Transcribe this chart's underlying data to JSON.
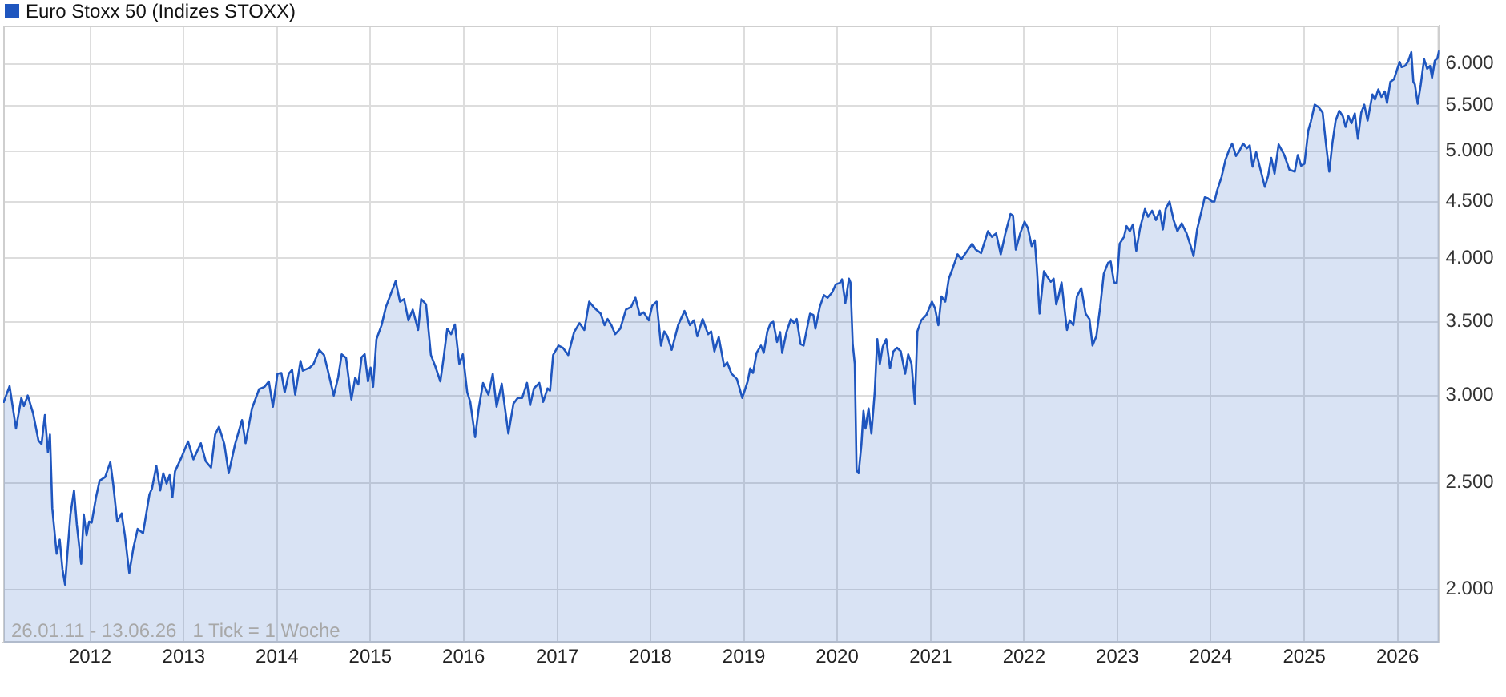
{
  "chart_data": {
    "type": "area",
    "legend": "top left",
    "grid": true,
    "log": true,
    "marker": "none",
    "annotations": [
      "26.01.11 - 13.06.26",
      "1 Tick = 1 Woche"
    ],
    "xlim": [
      "2011-01-26",
      "2026-06-13"
    ],
    "xticks": [
      "2012",
      "2013",
      "2014",
      "2015",
      "2016",
      "2017",
      "2018",
      "2019",
      "2020",
      "2021",
      "2022",
      "2023",
      "2024",
      "2025",
      "2026"
    ],
    "ylim": [
      1790,
      6500
    ],
    "yticks": [
      {
        "value": 2000,
        "label": "2.000"
      },
      {
        "value": 2500,
        "label": "2.500"
      },
      {
        "value": 3000,
        "label": "3.000"
      },
      {
        "value": 3500,
        "label": "3.500"
      },
      {
        "value": 4000,
        "label": "4.000"
      },
      {
        "value": 4500,
        "label": "4.500"
      },
      {
        "value": 5000,
        "label": "5.000"
      },
      {
        "value": 5500,
        "label": "5.500"
      },
      {
        "value": 6000,
        "label": "6.000"
      }
    ],
    "x": [
      "2011-01-28",
      "2011-02-20",
      "2011-03-17",
      "2011-04-07",
      "2011-04-17",
      "2011-05-02",
      "2011-05-23",
      "2011-06-13",
      "2011-06-25",
      "2011-07-08",
      "2011-07-20",
      "2011-07-28",
      "2011-08-06",
      "2011-08-23",
      "2011-09-04",
      "2011-09-15",
      "2011-09-25",
      "2011-10-03",
      "2011-10-16",
      "2011-10-30",
      "2011-11-10",
      "2011-11-27",
      "2011-12-07",
      "2011-12-18",
      "2011-12-28",
      "2012-01-07",
      "2012-01-24",
      "2012-02-07",
      "2012-02-29",
      "2012-03-20",
      "2012-03-31",
      "2012-04-16",
      "2012-05-03",
      "2012-05-16",
      "2012-06-02",
      "2012-06-18",
      "2012-07-05",
      "2012-07-26",
      "2012-08-20",
      "2012-08-30",
      "2012-09-16",
      "2012-10-01",
      "2012-10-13",
      "2012-10-26",
      "2012-11-07",
      "2012-11-18",
      "2012-11-28",
      "2012-12-23",
      "2013-01-18",
      "2013-02-08",
      "2013-03-09",
      "2013-03-28",
      "2013-04-18",
      "2013-05-04",
      "2013-05-19",
      "2013-06-09",
      "2013-06-26",
      "2013-07-21",
      "2013-08-17",
      "2013-08-31",
      "2013-09-25",
      "2013-10-23",
      "2013-11-13",
      "2013-11-30",
      "2013-12-16",
      "2014-01-03",
      "2014-01-18",
      "2014-01-31",
      "2014-02-16",
      "2014-03-01",
      "2014-03-13",
      "2014-04-03",
      "2014-04-12",
      "2014-05-09",
      "2014-05-24",
      "2014-06-15",
      "2014-07-04",
      "2014-07-17",
      "2014-08-11",
      "2014-08-28",
      "2014-09-11",
      "2014-09-28",
      "2014-10-19",
      "2014-11-03",
      "2014-11-15",
      "2014-11-28",
      "2014-12-10",
      "2014-12-23",
      "2015-01-02",
      "2015-01-12",
      "2015-01-25",
      "2015-02-14",
      "2015-03-03",
      "2015-03-24",
      "2015-04-10",
      "2015-04-27",
      "2015-05-13",
      "2015-05-30",
      "2015-06-16",
      "2015-07-07",
      "2015-07-19",
      "2015-08-07",
      "2015-08-26",
      "2015-09-12",
      "2015-10-02",
      "2015-10-15",
      "2015-10-29",
      "2015-11-13",
      "2015-11-28",
      "2015-12-15",
      "2015-12-29",
      "2016-01-15",
      "2016-01-27",
      "2016-02-15",
      "2016-02-29",
      "2016-03-17",
      "2016-04-07",
      "2016-04-24",
      "2016-05-09",
      "2016-05-29",
      "2016-06-24",
      "2016-07-14",
      "2016-07-31",
      "2016-08-17",
      "2016-09-05",
      "2016-09-17",
      "2016-10-02",
      "2016-10-23",
      "2016-11-07",
      "2016-11-24",
      "2016-12-04",
      "2016-12-16",
      "2017-01-06",
      "2017-01-23",
      "2017-02-13",
      "2017-03-08",
      "2017-03-29",
      "2017-04-17",
      "2017-05-06",
      "2017-05-28",
      "2017-06-20",
      "2017-07-05",
      "2017-07-17",
      "2017-08-01",
      "2017-08-16",
      "2017-09-05",
      "2017-09-27",
      "2017-10-17",
      "2017-11-03",
      "2017-11-20",
      "2017-12-05",
      "2017-12-25",
      "2018-01-08",
      "2018-01-25",
      "2018-02-11",
      "2018-02-24",
      "2018-03-08",
      "2018-03-25",
      "2018-04-19",
      "2018-05-14",
      "2018-06-04",
      "2018-06-20",
      "2018-07-03",
      "2018-07-24",
      "2018-08-14",
      "2018-08-26",
      "2018-09-08",
      "2018-09-25",
      "2018-10-16",
      "2018-10-28",
      "2018-11-14",
      "2018-12-05",
      "2018-12-26",
      "2019-01-16",
      "2019-01-26",
      "2019-02-06",
      "2019-02-20",
      "2019-03-09",
      "2019-03-20",
      "2019-04-03",
      "2019-04-16",
      "2019-04-26",
      "2019-05-11",
      "2019-05-23",
      "2019-05-31",
      "2019-06-17",
      "2019-07-04",
      "2019-07-17",
      "2019-07-27",
      "2019-08-11",
      "2019-08-23",
      "2019-09-05",
      "2019-09-17",
      "2019-09-30",
      "2019-10-08",
      "2019-10-25",
      "2019-11-10",
      "2019-11-25",
      "2019-12-12",
      "2019-12-27",
      "2020-01-11",
      "2020-01-20",
      "2020-02-02",
      "2020-02-16",
      "2020-02-22",
      "2020-03-02",
      "2020-03-10",
      "2020-03-17",
      "2020-03-25",
      "2020-04-05",
      "2020-04-13",
      "2020-04-21",
      "2020-05-03",
      "2020-05-14",
      "2020-05-27",
      "2020-06-06",
      "2020-06-16",
      "2020-06-27",
      "2020-07-11",
      "2020-07-26",
      "2020-08-08",
      "2020-08-22",
      "2020-09-06",
      "2020-09-23",
      "2020-10-05",
      "2020-10-18",
      "2020-10-31",
      "2020-11-10",
      "2020-11-25",
      "2020-12-15",
      "2021-01-06",
      "2021-01-18",
      "2021-01-31",
      "2021-02-12",
      "2021-02-27",
      "2021-03-13",
      "2021-03-30",
      "2021-04-16",
      "2021-05-01",
      "2021-05-21",
      "2021-06-12",
      "2021-06-26",
      "2021-07-17",
      "2021-08-13",
      "2021-08-28",
      "2021-09-14",
      "2021-10-02",
      "2021-10-20",
      "2021-11-09",
      "2021-11-19",
      "2021-11-30",
      "2021-12-17",
      "2022-01-03",
      "2022-01-16",
      "2022-01-31",
      "2022-02-12",
      "2022-02-20",
      "2022-03-03",
      "2022-03-20",
      "2022-03-30",
      "2022-04-16",
      "2022-04-27",
      "2022-05-07",
      "2022-05-16",
      "2022-05-28",
      "2022-06-07",
      "2022-06-18",
      "2022-06-29",
      "2022-07-13",
      "2022-07-27",
      "2022-08-13",
      "2022-08-30",
      "2022-09-14",
      "2022-09-26",
      "2022-10-11",
      "2022-10-26",
      "2022-11-09",
      "2022-11-26",
      "2022-12-06",
      "2022-12-19",
      "2022-12-30",
      "2023-01-10",
      "2023-01-27",
      "2023-02-06",
      "2023-02-19",
      "2023-03-03",
      "2023-03-16",
      "2023-03-31",
      "2023-04-19",
      "2023-05-01",
      "2023-05-17",
      "2023-06-01",
      "2023-06-16",
      "2023-06-28",
      "2023-07-09",
      "2023-07-24",
      "2023-08-09",
      "2023-08-24",
      "2023-09-10",
      "2023-09-29",
      "2023-10-15",
      "2023-10-26",
      "2023-11-09",
      "2023-11-22",
      "2023-12-09",
      "2023-12-21",
      "2024-01-06",
      "2024-01-16",
      "2024-01-27",
      "2024-02-13",
      "2024-02-28",
      "2024-03-13",
      "2024-03-25",
      "2024-04-09",
      "2024-04-20",
      "2024-05-07",
      "2024-05-22",
      "2024-06-02",
      "2024-06-13",
      "2024-06-27",
      "2024-07-14",
      "2024-07-31",
      "2024-08-13",
      "2024-08-25",
      "2024-09-07",
      "2024-09-23",
      "2024-10-15",
      "2024-11-04",
      "2024-11-25",
      "2024-12-07",
      "2024-12-20",
      "2025-01-02",
      "2025-01-17",
      "2025-01-27",
      "2025-02-11",
      "2025-02-27",
      "2025-03-14",
      "2025-03-27",
      "2025-04-09",
      "2025-04-21",
      "2025-05-04",
      "2025-05-18",
      "2025-06-01",
      "2025-06-12",
      "2025-06-23",
      "2025-07-05",
      "2025-07-18",
      "2025-07-30",
      "2025-08-12",
      "2025-08-24",
      "2025-09-06",
      "2025-09-25",
      "2025-10-05",
      "2025-10-18",
      "2025-10-30",
      "2025-11-12",
      "2025-11-21",
      "2025-12-04",
      "2025-12-18",
      "2026-01-09",
      "2026-01-17",
      "2026-01-30",
      "2026-02-11",
      "2026-02-24",
      "2026-03-04",
      "2026-03-10",
      "2026-03-21",
      "2026-04-02",
      "2026-04-15",
      "2026-04-27",
      "2026-05-08",
      "2026-05-16",
      "2026-05-27",
      "2026-06-06",
      "2026-06-12"
    ],
    "series": [
      {
        "name": "Euro Stoxx 50 (Indizes STOXX)",
        "color": "#1f56bf",
        "values": [
          2960,
          3060,
          2800,
          2985,
          2935,
          3000,
          2890,
          2730,
          2710,
          2880,
          2665,
          2765,
          2370,
          2155,
          2220,
          2085,
          2020,
          2140,
          2340,
          2460,
          2290,
          2110,
          2340,
          2240,
          2305,
          2300,
          2425,
          2510,
          2530,
          2610,
          2495,
          2305,
          2345,
          2240,
          2070,
          2180,
          2270,
          2250,
          2440,
          2470,
          2590,
          2460,
          2550,
          2495,
          2540,
          2425,
          2560,
          2635,
          2725,
          2625,
          2715,
          2615,
          2580,
          2765,
          2810,
          2710,
          2550,
          2710,
          2850,
          2715,
          2920,
          3040,
          3055,
          3090,
          2930,
          3140,
          3145,
          3020,
          3140,
          3165,
          3005,
          3225,
          3160,
          3180,
          3205,
          3300,
          3265,
          3175,
          3000,
          3115,
          3270,
          3245,
          2975,
          3115,
          3070,
          3250,
          3270,
          3090,
          3180,
          3055,
          3375,
          3475,
          3610,
          3720,
          3810,
          3650,
          3670,
          3510,
          3590,
          3440,
          3670,
          3630,
          3265,
          3190,
          3090,
          3250,
          3450,
          3410,
          3480,
          3205,
          3270,
          3020,
          2960,
          2750,
          2920,
          3080,
          3005,
          3140,
          2930,
          3075,
          2770,
          2950,
          2985,
          2985,
          3080,
          2940,
          3045,
          3080,
          2960,
          3045,
          3030,
          3265,
          3330,
          3315,
          3265,
          3425,
          3490,
          3440,
          3650,
          3600,
          3560,
          3475,
          3520,
          3475,
          3410,
          3450,
          3590,
          3610,
          3680,
          3550,
          3570,
          3510,
          3620,
          3650,
          3330,
          3430,
          3395,
          3300,
          3475,
          3580,
          3475,
          3510,
          3395,
          3520,
          3410,
          3430,
          3290,
          3390,
          3190,
          3215,
          3140,
          3105,
          2985,
          3090,
          3175,
          3145,
          3280,
          3330,
          3280,
          3430,
          3490,
          3500,
          3355,
          3425,
          3280,
          3425,
          3520,
          3490,
          3520,
          3340,
          3330,
          3450,
          3560,
          3550,
          3450,
          3610,
          3700,
          3680,
          3720,
          3785,
          3795,
          3825,
          3640,
          3830,
          3800,
          3340,
          3205,
          2565,
          2550,
          2710,
          2905,
          2800,
          2920,
          2770,
          3020,
          3375,
          3205,
          3320,
          3375,
          3175,
          3290,
          3315,
          3290,
          3140,
          3270,
          3205,
          2950,
          3430,
          3510,
          3550,
          3650,
          3600,
          3475,
          3690,
          3650,
          3830,
          3925,
          4030,
          3990,
          4050,
          4120,
          4070,
          4040,
          4230,
          4180,
          4210,
          4030,
          4210,
          4385,
          4370,
          4070,
          4210,
          4315,
          4260,
          4100,
          4150,
          3925,
          3560,
          3890,
          3855,
          3805,
          3830,
          3630,
          3690,
          3800,
          3620,
          3440,
          3510,
          3475,
          3690,
          3755,
          3560,
          3520,
          3330,
          3395,
          3610,
          3870,
          3960,
          3970,
          3800,
          3795,
          4120,
          4180,
          4275,
          4230,
          4290,
          4060,
          4260,
          4430,
          4360,
          4415,
          4330,
          4415,
          4245,
          4430,
          4500,
          4330,
          4230,
          4300,
          4210,
          4100,
          4015,
          4245,
          4370,
          4540,
          4530,
          4500,
          4500,
          4610,
          4740,
          4910,
          5010,
          5080,
          4950,
          4990,
          5080,
          5030,
          5060,
          4840,
          4990,
          4810,
          4640,
          4750,
          4930,
          4770,
          5070,
          4960,
          4810,
          4790,
          4960,
          4850,
          4870,
          5220,
          5320,
          5510,
          5480,
          5420,
          5080,
          4790,
          5080,
          5330,
          5440,
          5380,
          5260,
          5380,
          5300,
          5410,
          5130,
          5420,
          5510,
          5330,
          5630,
          5570,
          5690,
          5600,
          5665,
          5530,
          5780,
          5810,
          6025,
          5960,
          5975,
          6025,
          6150,
          5780,
          5750,
          5520,
          5750,
          6060,
          5940,
          5975,
          5830,
          6040,
          6070,
          6160
        ]
      }
    ]
  }
}
